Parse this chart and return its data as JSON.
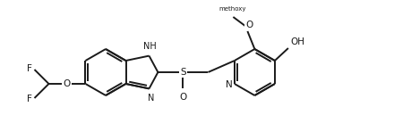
{
  "background": "#ffffff",
  "line_color": "#1a1a1a",
  "line_width": 1.4,
  "font_size": 7.5,
  "fig_width": 4.4,
  "fig_height": 1.57,
  "dpi": 100,
  "xlim": [
    0,
    440
  ],
  "ylim": [
    0,
    157
  ]
}
